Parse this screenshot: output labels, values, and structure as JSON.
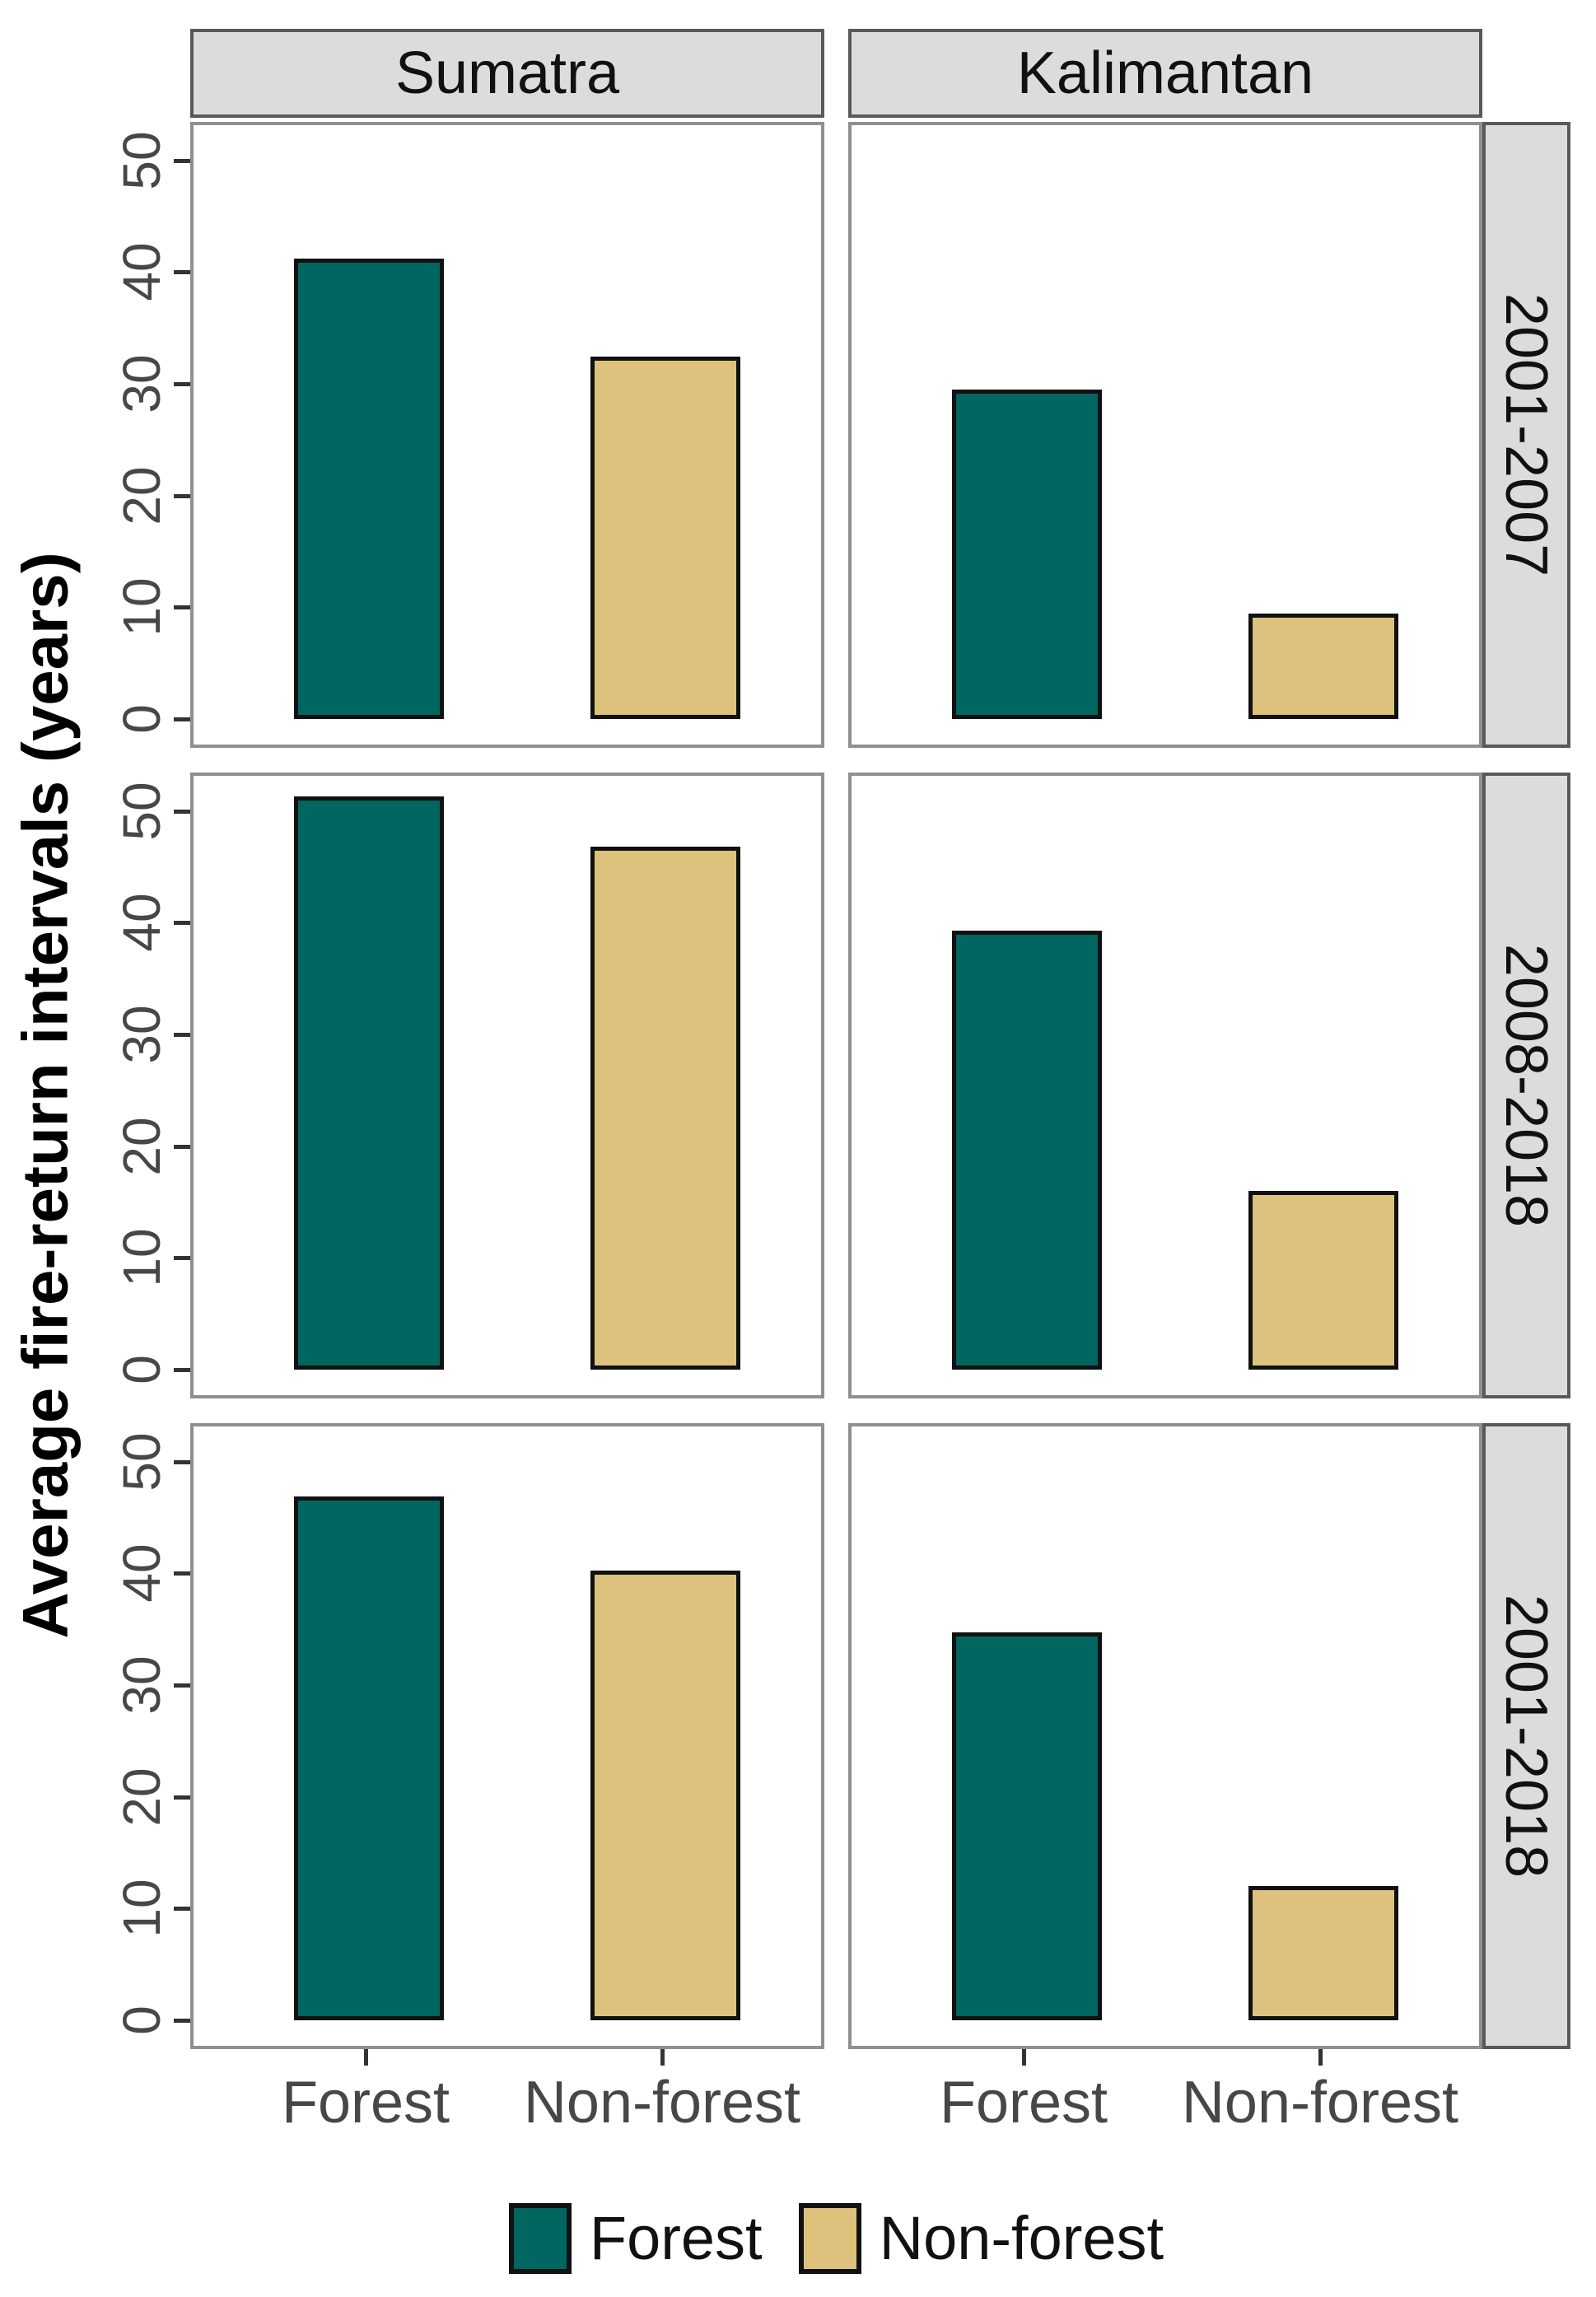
{
  "chart_data": {
    "type": "bar",
    "ylabel": "Average fire-return intervals (years)",
    "categories": [
      "Forest",
      "Non-forest"
    ],
    "facet_cols": [
      "Sumatra",
      "Kalimantan"
    ],
    "facet_rows": [
      "2001-2007",
      "2008-2018",
      "2001-2018"
    ],
    "yticks": [
      "0",
      "10",
      "20",
      "30",
      "40",
      "50"
    ],
    "ylim": [
      0,
      53.4
    ],
    "grid": "off",
    "legend_position": "bottom",
    "legend": [
      {
        "label": "Forest",
        "color": "#00665f"
      },
      {
        "label": "Non-forest",
        "color": "#ddc17d"
      }
    ],
    "panels": [
      {
        "facet_row": "2001-2007",
        "facet_col": "Sumatra",
        "values": [
          41.2,
          32.4
        ]
      },
      {
        "facet_row": "2001-2007",
        "facet_col": "Kalimantan",
        "values": [
          29.5,
          9.4
        ]
      },
      {
        "facet_row": "2008-2018",
        "facet_col": "Sumatra",
        "values": [
          51.3,
          46.8
        ]
      },
      {
        "facet_row": "2008-2018",
        "facet_col": "Kalimantan",
        "values": [
          39.3,
          16.0
        ]
      },
      {
        "facet_row": "2001-2018",
        "facet_col": "Sumatra",
        "values": [
          46.9,
          40.2
        ]
      },
      {
        "facet_row": "2001-2018",
        "facet_col": "Kalimantan",
        "values": [
          34.7,
          12.0
        ]
      }
    ],
    "colors": {
      "forest": "#00665f",
      "non_forest": "#ddc17d",
      "bar_border": "#111111",
      "strip_fill": "#dcdcdc",
      "strip_border": "#595959",
      "panel_border": "#8f8f8f",
      "tick": "#333333",
      "axis_text": "#474747",
      "text": "#111111"
    }
  }
}
